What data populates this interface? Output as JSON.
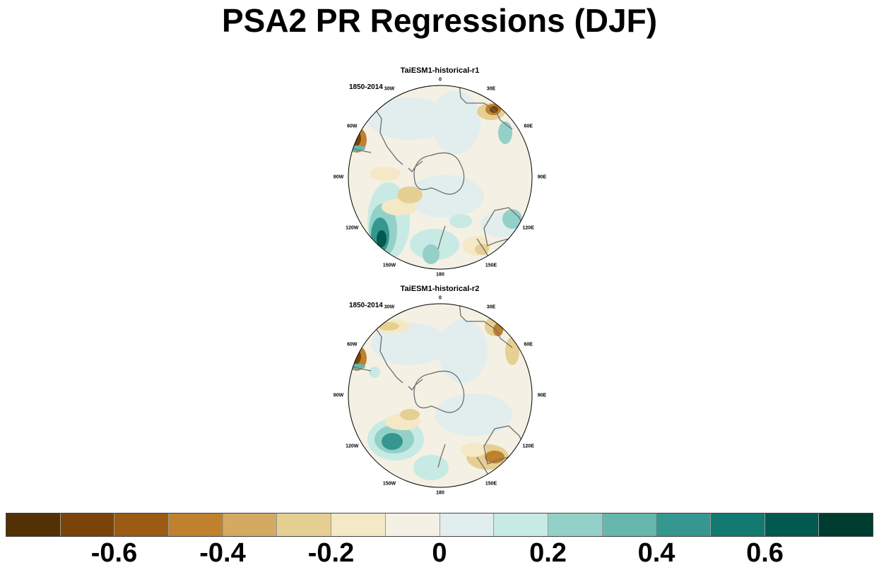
{
  "title": "PSA2 PR Regressions (DJF)",
  "panels": [
    {
      "title": "TaiESM1-historical-r1",
      "period": "1850-2014"
    },
    {
      "title": "TaiESM1-historical-r2",
      "period": "1850-2014"
    }
  ],
  "longitude_labels": [
    "0",
    "30E",
    "60E",
    "90E",
    "120E",
    "150E",
    "180",
    "150W",
    "120W",
    "90W",
    "60W",
    "30W"
  ],
  "colorbar": {
    "colors": [
      "#543005",
      "#7a430a",
      "#9c5b15",
      "#bf812d",
      "#d4aa62",
      "#e6cf93",
      "#f5e8c6",
      "#f4f0e4",
      "#e2eeee",
      "#c7eae4",
      "#93d1c8",
      "#66b7ad",
      "#35978f",
      "#127a71",
      "#01594f",
      "#003c30"
    ],
    "labels": [
      "-0.6",
      "-0.4",
      "-0.2",
      "0",
      "0.2",
      "0.4",
      "0.6"
    ]
  },
  "map_colors": {
    "land_outline": "#6e6e6e",
    "background": "#f4f0e4"
  }
}
